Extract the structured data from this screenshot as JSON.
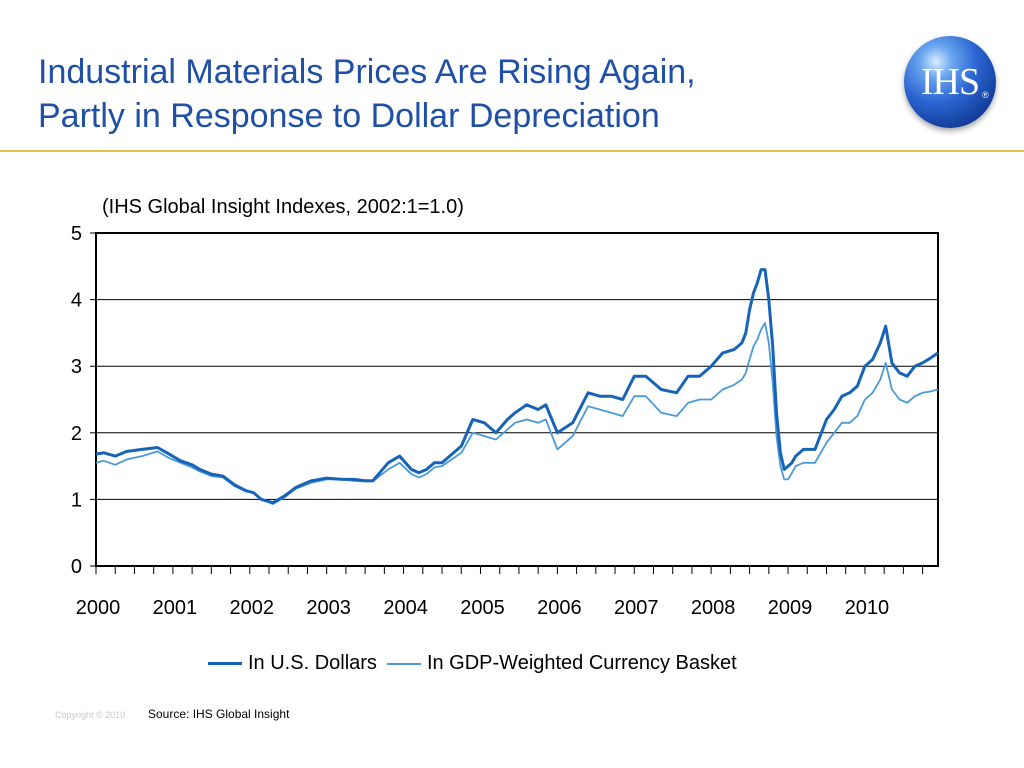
{
  "header": {
    "title_line1": "Industrial Materials Prices Are Rising Again,",
    "title_line2": "Partly in Response to Dollar Depreciation",
    "logo_text": "IHS",
    "logo_reg": "®"
  },
  "footer": {
    "copyright": "Copyright © 2010",
    "source": "Source:  IHS Global Insight"
  },
  "colors": {
    "title": "#1f4fa6",
    "usd_series": "#1763b8",
    "basket_series": "#4a9ad8",
    "rule": "#e6c14a"
  },
  "chart_data": {
    "type": "line",
    "subtitle": "(IHS Global Insight Indexes, 2002:1=1.0)",
    "xlabel": "",
    "ylabel": "",
    "ylim": [
      0,
      5
    ],
    "yticks": [
      0,
      1,
      2,
      3,
      4,
      5
    ],
    "xlim": [
      2000.0,
      2010.95
    ],
    "xtick_labels": [
      "2000",
      "2001",
      "2002",
      "2003",
      "2004",
      "2005",
      "2006",
      "2007",
      "2008",
      "2009",
      "2010"
    ],
    "grid": "horizontal",
    "legend_position": "bottom",
    "series": [
      {
        "name": "In U.S. Dollars",
        "color": "#1763b8",
        "x": [
          2000.0,
          2000.1,
          2000.25,
          2000.4,
          2000.6,
          2000.8,
          2000.95,
          2001.1,
          2001.25,
          2001.35,
          2001.5,
          2001.65,
          2001.8,
          2001.95,
          2002.05,
          2002.15,
          2002.3,
          2002.45,
          2002.6,
          2002.8,
          2003.0,
          2003.2,
          2003.35,
          2003.5,
          2003.6,
          2003.8,
          2003.95,
          2004.1,
          2004.2,
          2004.3,
          2004.4,
          2004.5,
          2004.6,
          2004.75,
          2004.9,
          2005.05,
          2005.2,
          2005.35,
          2005.45,
          2005.6,
          2005.75,
          2005.85,
          2006.0,
          2006.2,
          2006.4,
          2006.55,
          2006.7,
          2006.85,
          2007.0,
          2007.15,
          2007.35,
          2007.55,
          2007.7,
          2007.85,
          2008.0,
          2008.15,
          2008.3,
          2008.4,
          2008.45,
          2008.5,
          2008.55,
          2008.6,
          2008.65,
          2008.7,
          2008.75,
          2008.8,
          2008.85,
          2008.9,
          2008.95,
          2009.0,
          2009.05,
          2009.1,
          2009.2,
          2009.35,
          2009.5,
          2009.6,
          2009.7,
          2009.8,
          2009.9,
          2010.0,
          2010.1,
          2010.2,
          2010.27,
          2010.35,
          2010.45,
          2010.55,
          2010.65,
          2010.75,
          2010.85,
          2010.95
        ],
        "values": [
          1.68,
          1.7,
          1.65,
          1.72,
          1.75,
          1.78,
          1.68,
          1.58,
          1.52,
          1.45,
          1.38,
          1.35,
          1.22,
          1.13,
          1.1,
          1.0,
          0.95,
          1.05,
          1.18,
          1.28,
          1.32,
          1.3,
          1.3,
          1.28,
          1.28,
          1.55,
          1.65,
          1.45,
          1.4,
          1.45,
          1.55,
          1.55,
          1.65,
          1.8,
          2.2,
          2.15,
          2.0,
          2.2,
          2.3,
          2.42,
          2.35,
          2.42,
          2.0,
          2.15,
          2.6,
          2.55,
          2.55,
          2.5,
          2.85,
          2.85,
          2.65,
          2.6,
          2.85,
          2.85,
          3.0,
          3.2,
          3.25,
          3.35,
          3.5,
          3.85,
          4.1,
          4.25,
          4.45,
          4.45,
          4.0,
          3.3,
          2.3,
          1.7,
          1.45,
          1.5,
          1.55,
          1.65,
          1.75,
          1.75,
          2.2,
          2.35,
          2.55,
          2.6,
          2.7,
          3.0,
          3.1,
          3.35,
          3.6,
          3.05,
          2.9,
          2.85,
          3.0,
          3.05,
          3.12,
          3.2
        ]
      },
      {
        "name": "In GDP-Weighted Currency Basket",
        "color": "#4a9ad8",
        "x": [
          2000.0,
          2000.1,
          2000.25,
          2000.4,
          2000.6,
          2000.8,
          2000.95,
          2001.1,
          2001.25,
          2001.35,
          2001.5,
          2001.65,
          2001.8,
          2001.95,
          2002.05,
          2002.15,
          2002.3,
          2002.45,
          2002.6,
          2002.8,
          2003.0,
          2003.2,
          2003.35,
          2003.5,
          2003.6,
          2003.8,
          2003.95,
          2004.1,
          2004.2,
          2004.3,
          2004.4,
          2004.5,
          2004.6,
          2004.75,
          2004.9,
          2005.05,
          2005.2,
          2005.35,
          2005.45,
          2005.6,
          2005.75,
          2005.85,
          2006.0,
          2006.2,
          2006.4,
          2006.55,
          2006.7,
          2006.85,
          2007.0,
          2007.15,
          2007.35,
          2007.55,
          2007.7,
          2007.85,
          2008.0,
          2008.15,
          2008.3,
          2008.4,
          2008.45,
          2008.5,
          2008.55,
          2008.6,
          2008.65,
          2008.7,
          2008.75,
          2008.8,
          2008.85,
          2008.9,
          2008.95,
          2009.0,
          2009.05,
          2009.1,
          2009.2,
          2009.35,
          2009.5,
          2009.6,
          2009.7,
          2009.8,
          2009.9,
          2010.0,
          2010.1,
          2010.2,
          2010.27,
          2010.35,
          2010.45,
          2010.55,
          2010.65,
          2010.75,
          2010.85,
          2010.95
        ],
        "values": [
          1.55,
          1.58,
          1.52,
          1.6,
          1.65,
          1.72,
          1.62,
          1.55,
          1.48,
          1.42,
          1.35,
          1.33,
          1.2,
          1.12,
          1.1,
          1.0,
          0.93,
          1.03,
          1.16,
          1.25,
          1.3,
          1.3,
          1.28,
          1.27,
          1.27,
          1.45,
          1.55,
          1.38,
          1.33,
          1.38,
          1.48,
          1.5,
          1.58,
          1.7,
          2.0,
          1.95,
          1.9,
          2.05,
          2.15,
          2.2,
          2.15,
          2.2,
          1.75,
          1.95,
          2.4,
          2.35,
          2.3,
          2.25,
          2.55,
          2.55,
          2.3,
          2.25,
          2.45,
          2.5,
          2.5,
          2.65,
          2.72,
          2.8,
          2.9,
          3.1,
          3.3,
          3.4,
          3.55,
          3.65,
          3.35,
          2.75,
          1.95,
          1.5,
          1.3,
          1.3,
          1.4,
          1.5,
          1.55,
          1.55,
          1.85,
          2.0,
          2.15,
          2.15,
          2.25,
          2.5,
          2.6,
          2.8,
          3.05,
          2.65,
          2.5,
          2.45,
          2.55,
          2.6,
          2.62,
          2.65
        ]
      }
    ]
  }
}
